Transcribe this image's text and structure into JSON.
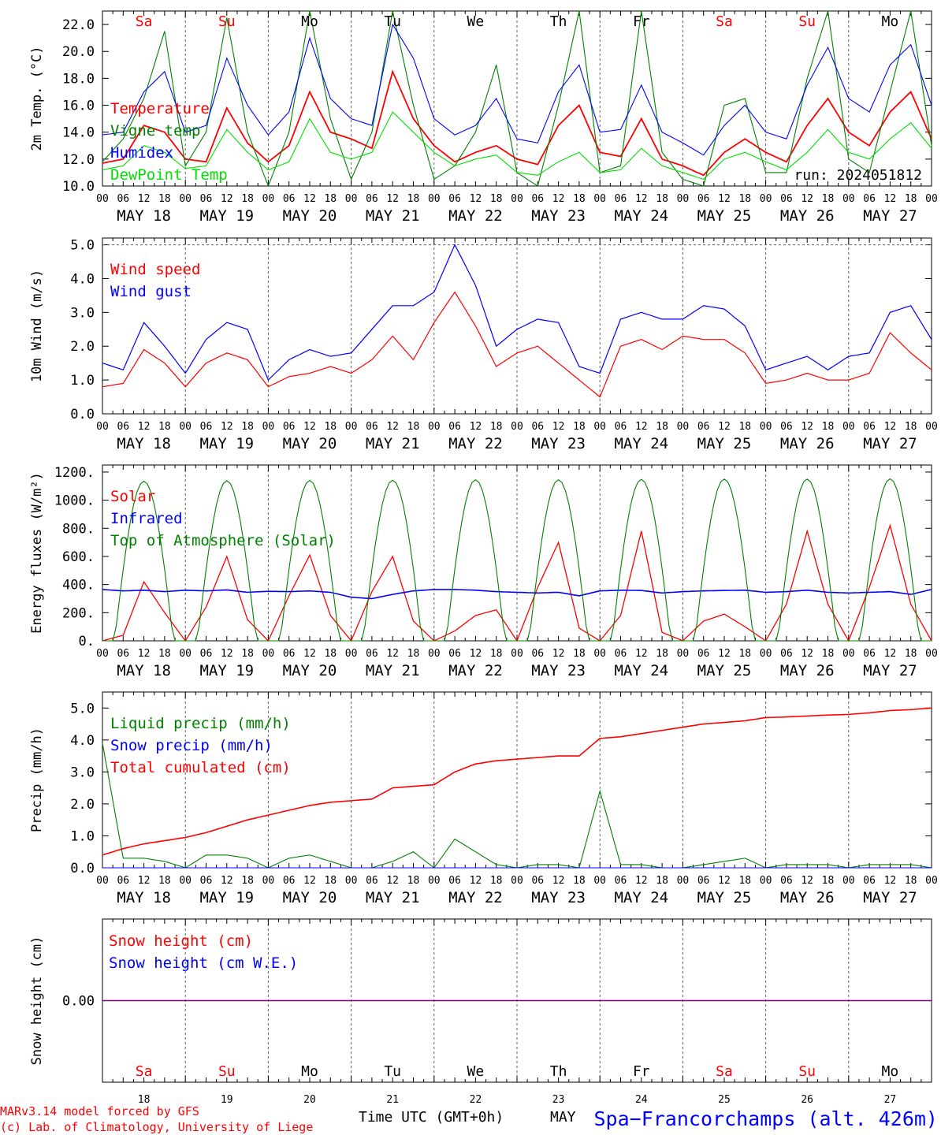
{
  "colors": {
    "red": "#ff0000",
    "blue": "#0000ff",
    "green": "#008000",
    "lightgreen": "#00e000",
    "purple": "#800080",
    "grid": "#606060",
    "text": "#000000"
  },
  "time": {
    "hour_ticks": [
      "00",
      "06",
      "12",
      "18"
    ],
    "end_tick": "00",
    "date_labels": [
      "MAY 18",
      "MAY 19",
      "MAY 20",
      "MAY 21",
      "MAY 22",
      "MAY 23",
      "MAY 24",
      "MAY 25",
      "MAY 26",
      "MAY 27"
    ],
    "day_names": [
      {
        "label": "Sa",
        "weekend": true
      },
      {
        "label": "Su",
        "weekend": true
      },
      {
        "label": "Mo",
        "weekend": false
      },
      {
        "label": "Tu",
        "weekend": false
      },
      {
        "label": "We",
        "weekend": false
      },
      {
        "label": "Th",
        "weekend": false
      },
      {
        "label": "Fr",
        "weekend": false
      },
      {
        "label": "Sa",
        "weekend": true
      },
      {
        "label": "Su",
        "weekend": true
      },
      {
        "label": "Mo",
        "weekend": false
      }
    ],
    "day_numbers": [
      "18",
      "19",
      "20",
      "21",
      "22",
      "23",
      "24",
      "25",
      "26",
      "27"
    ],
    "xlabel": "Time UTC (GMT+0h)",
    "month": "MAY"
  },
  "footer": {
    "credit_line1": "MARv3.14 model forced by GFS",
    "credit_line2": "(c) Lab. of Climatology, University of Liege",
    "station": "Spa−Francorchamps (alt. 426m)"
  },
  "chart_data": [
    {
      "type": "line",
      "ylabel": "2m Temp. (°C)",
      "ylim": [
        10,
        23
      ],
      "yticks": [
        "10.0",
        "12.0",
        "14.0",
        "16.0",
        "18.0",
        "20.0",
        "22.0"
      ],
      "yticks_values": [
        10,
        12,
        14,
        16,
        18,
        20,
        22
      ],
      "run_label": "run: 2024051812",
      "x_hours": [
        0,
        6,
        12,
        18,
        24,
        30,
        36,
        42,
        48,
        54,
        60,
        66,
        72,
        78,
        84,
        90,
        96,
        102,
        108,
        114,
        120,
        126,
        132,
        138,
        144,
        150,
        156,
        162,
        168,
        174,
        180,
        186,
        192,
        198,
        204,
        210,
        216,
        222,
        228,
        234,
        240
      ],
      "series": [
        {
          "name": "Temperature",
          "color": "red",
          "values": [
            11.7,
            12.0,
            14.5,
            14.0,
            12.0,
            11.8,
            15.8,
            13.2,
            11.8,
            13.0,
            17.0,
            14.0,
            13.5,
            12.8,
            18.5,
            15.0,
            13.0,
            11.8,
            12.5,
            13.0,
            12.0,
            11.6,
            14.5,
            16.0,
            12.5,
            12.2,
            15.0,
            12.0,
            11.5,
            10.8,
            12.5,
            13.5,
            12.5,
            11.8,
            14.5,
            16.5,
            14.0,
            13.0,
            15.5,
            17.0,
            13.5
          ]
        },
        {
          "name": "Vigne temp",
          "color": "green",
          "values": [
            11.8,
            13.5,
            16.5,
            21.5,
            11.5,
            14.0,
            22.5,
            14.0,
            10.0,
            14.0,
            23.0,
            15.0,
            10.5,
            14.0,
            23.0,
            16.0,
            10.5,
            11.5,
            14.0,
            19.0,
            11.0,
            10.0,
            16.0,
            23.0,
            11.0,
            11.5,
            23.0,
            12.5,
            10.5,
            10.0,
            16.0,
            16.5,
            11.0,
            11.0,
            18.0,
            23.0,
            12.0,
            11.0,
            17.0,
            23.0,
            13.0
          ]
        },
        {
          "name": "Humidex",
          "color": "blue",
          "values": [
            13.8,
            14.0,
            17.0,
            18.5,
            14.0,
            14.5,
            19.5,
            16.0,
            13.8,
            15.5,
            21.0,
            16.5,
            15.0,
            14.5,
            22.0,
            19.5,
            15.0,
            13.8,
            14.5,
            16.5,
            13.5,
            13.2,
            17.0,
            19.0,
            14.0,
            14.2,
            17.5,
            14.0,
            13.2,
            12.3,
            14.5,
            16.0,
            14.0,
            13.5,
            17.5,
            20.3,
            16.5,
            15.5,
            19.0,
            20.5,
            16.0
          ]
        },
        {
          "name": "DewPoint Temp",
          "color": "lightgreen",
          "values": [
            11.2,
            11.5,
            13.0,
            12.5,
            11.3,
            11.5,
            14.2,
            12.5,
            11.2,
            11.8,
            15.0,
            12.5,
            12.0,
            12.5,
            15.5,
            14.0,
            12.5,
            11.5,
            12.0,
            12.3,
            11.0,
            10.8,
            11.8,
            12.5,
            11.0,
            11.2,
            12.8,
            11.5,
            11.0,
            10.5,
            12.0,
            12.5,
            11.8,
            11.2,
            12.5,
            14.2,
            12.5,
            12.0,
            13.5,
            14.7,
            12.8
          ]
        }
      ]
    },
    {
      "type": "line",
      "ylabel": "10m Wind (m/s)",
      "ylim": [
        0,
        5.2
      ],
      "yticks": [
        "0.0",
        "1.0",
        "2.0",
        "3.0",
        "4.0",
        "5.0"
      ],
      "yticks_values": [
        0,
        1,
        2,
        3,
        4,
        5
      ],
      "ref_line": 5.0,
      "x_hours": [
        0,
        6,
        12,
        18,
        24,
        30,
        36,
        42,
        48,
        54,
        60,
        66,
        72,
        78,
        84,
        90,
        96,
        102,
        108,
        114,
        120,
        126,
        132,
        138,
        144,
        150,
        156,
        162,
        168,
        174,
        180,
        186,
        192,
        198,
        204,
        210,
        216,
        222,
        228,
        234,
        240
      ],
      "series": [
        {
          "name": "Wind speed",
          "color": "red",
          "values": [
            0.8,
            0.9,
            1.9,
            1.5,
            0.8,
            1.5,
            1.8,
            1.6,
            0.8,
            1.1,
            1.2,
            1.4,
            1.2,
            1.6,
            2.3,
            1.6,
            2.7,
            3.6,
            2.6,
            1.4,
            1.8,
            2.0,
            1.5,
            1.0,
            0.5,
            2.0,
            2.2,
            1.9,
            2.3,
            2.2,
            2.2,
            1.8,
            0.9,
            1.0,
            1.2,
            1.0,
            1.0,
            1.2,
            2.4,
            1.8,
            1.3
          ]
        },
        {
          "name": "Wind gust",
          "color": "blue",
          "values": [
            1.5,
            1.3,
            2.7,
            2.0,
            1.2,
            2.2,
            2.7,
            2.5,
            1.0,
            1.6,
            1.9,
            1.7,
            1.8,
            2.5,
            3.2,
            3.2,
            3.6,
            5.0,
            3.8,
            2.0,
            2.5,
            2.8,
            2.7,
            1.4,
            1.2,
            2.8,
            3.0,
            2.8,
            2.8,
            3.2,
            3.1,
            2.6,
            1.3,
            1.5,
            1.7,
            1.3,
            1.7,
            1.8,
            3.0,
            3.2,
            2.2
          ]
        }
      ]
    },
    {
      "type": "line",
      "ylabel": "Energy fluxes (W/m²)",
      "ylim": [
        0,
        1250
      ],
      "yticks": [
        "0.",
        "200.",
        "400.",
        "600.",
        "800.",
        "1000.",
        "1200."
      ],
      "yticks_values": [
        0,
        200,
        400,
        600,
        800,
        1000,
        1200
      ],
      "x_hours": [
        0,
        6,
        12,
        18,
        24,
        30,
        36,
        42,
        48,
        54,
        60,
        66,
        72,
        78,
        84,
        90,
        96,
        102,
        108,
        114,
        120,
        126,
        132,
        138,
        144,
        150,
        156,
        162,
        168,
        174,
        180,
        186,
        192,
        198,
        204,
        210,
        216,
        222,
        228,
        234,
        240
      ],
      "series": [
        {
          "name": "Solar",
          "color": "red",
          "values": [
            0,
            40,
            420,
            200,
            0,
            240,
            600,
            150,
            0,
            320,
            610,
            180,
            0,
            350,
            600,
            140,
            0,
            70,
            180,
            220,
            0,
            380,
            700,
            90,
            0,
            180,
            780,
            60,
            0,
            140,
            190,
            100,
            0,
            260,
            780,
            260,
            0,
            380,
            820,
            260,
            0
          ]
        },
        {
          "name": "Infrared",
          "color": "blue",
          "values": [
            365,
            355,
            360,
            350,
            360,
            355,
            362,
            345,
            352,
            350,
            355,
            345,
            310,
            300,
            330,
            355,
            365,
            365,
            360,
            350,
            345,
            340,
            345,
            320,
            355,
            360,
            358,
            340,
            350,
            355,
            358,
            360,
            345,
            350,
            360,
            345,
            340,
            345,
            350,
            330,
            365
          ]
        },
        {
          "name": "Top of Atmosphere (Solar)",
          "color": "green",
          "peaks": [
            1135,
            1138,
            1140,
            1142,
            1145,
            1145,
            1148,
            1150,
            1150,
            1152
          ]
        }
      ]
    },
    {
      "type": "line",
      "ylabel": "Precip (mm/h)",
      "ylim": [
        0,
        5.5
      ],
      "yticks": [
        "0.0",
        "1.0",
        "2.0",
        "3.0",
        "4.0",
        "5.0"
      ],
      "yticks_values": [
        0,
        1,
        2,
        3,
        4,
        5
      ],
      "x_hours": [
        0,
        6,
        12,
        18,
        24,
        30,
        36,
        42,
        48,
        54,
        60,
        66,
        72,
        78,
        84,
        90,
        96,
        102,
        108,
        114,
        120,
        126,
        132,
        138,
        144,
        150,
        156,
        162,
        168,
        174,
        180,
        186,
        192,
        198,
        204,
        210,
        216,
        222,
        228,
        234,
        240
      ],
      "series": [
        {
          "name": "Liquid precip (mm/h)",
          "color": "green",
          "values": [
            3.9,
            0.3,
            0.3,
            0.2,
            0.0,
            0.4,
            0.4,
            0.3,
            0.0,
            0.3,
            0.4,
            0.2,
            0.0,
            0.0,
            0.2,
            0.5,
            0.0,
            0.9,
            0.5,
            0.1,
            0.0,
            0.1,
            0.1,
            0.0,
            2.4,
            0.1,
            0.1,
            0.0,
            0.0,
            0.1,
            0.2,
            0.3,
            0.0,
            0.1,
            0.1,
            0.1,
            0.0,
            0.1,
            0.1,
            0.1,
            0.0
          ]
        },
        {
          "name": "Snow precip (mm/h)",
          "color": "blue",
          "values": [
            0,
            0,
            0,
            0,
            0,
            0,
            0,
            0,
            0,
            0,
            0,
            0,
            0,
            0,
            0,
            0,
            0,
            0,
            0,
            0,
            0,
            0,
            0,
            0,
            0,
            0,
            0,
            0,
            0,
            0,
            0,
            0,
            0,
            0,
            0,
            0,
            0,
            0,
            0,
            0,
            0
          ]
        },
        {
          "name": "Total cumulated (cm)",
          "color": "red",
          "values": [
            0.4,
            0.6,
            0.75,
            0.85,
            0.95,
            1.1,
            1.3,
            1.5,
            1.65,
            1.8,
            1.95,
            2.05,
            2.1,
            2.15,
            2.5,
            2.55,
            2.6,
            3.0,
            3.25,
            3.35,
            3.4,
            3.45,
            3.5,
            3.5,
            4.05,
            4.1,
            4.2,
            4.3,
            4.4,
            4.5,
            4.55,
            4.6,
            4.7,
            4.72,
            4.75,
            4.78,
            4.8,
            4.85,
            4.92,
            4.95,
            5.0
          ]
        }
      ]
    },
    {
      "type": "line",
      "ylabel": "Snow height (cm)",
      "ylim": [
        -1,
        1
      ],
      "yticks": [
        "0.00"
      ],
      "yticks_values": [
        0
      ],
      "series": [
        {
          "name": "Snow height (cm)",
          "color": "red",
          "values": [
            0,
            0
          ]
        },
        {
          "name": "Snow height (cm W.E.)",
          "color": "blue",
          "values": [
            0,
            0
          ]
        }
      ]
    }
  ]
}
